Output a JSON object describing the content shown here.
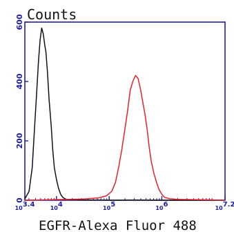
{
  "chart_data": {
    "type": "line",
    "ylabel": "Counts",
    "xlabel": "EGFR-Alexa Fluor 488",
    "x_scale": "log",
    "xlim_exponent": [
      3.4,
      7.2
    ],
    "ylim": [
      0,
      600
    ],
    "y_ticks": [
      "0",
      "200",
      "400",
      "600"
    ],
    "x_ticks": [
      {
        "base": "10",
        "exp": "3.4",
        "value_exp": 3.4
      },
      {
        "base": "10",
        "exp": "4",
        "value_exp": 4
      },
      {
        "base": "10",
        "exp": "5",
        "value_exp": 5
      },
      {
        "base": "10",
        "exp": "6",
        "value_exp": 6
      },
      {
        "base": "10",
        "exp": "7.2",
        "value_exp": 7.2
      }
    ],
    "axis_color": "#1d1da0",
    "series": [
      {
        "color": "#111111",
        "x_exp": [
          3.4,
          3.48,
          3.54,
          3.58,
          3.62,
          3.66,
          3.69,
          3.72,
          3.75,
          3.78,
          3.8,
          3.83,
          3.86,
          3.9,
          3.93,
          3.96,
          4.0,
          4.04,
          4.08,
          4.12,
          4.16,
          4.2,
          4.3,
          4.5,
          4.8,
          5.1,
          5.5,
          6.0,
          6.5,
          7.2
        ],
        "y": [
          5,
          30,
          110,
          230,
          350,
          470,
          540,
          580,
          560,
          520,
          500,
          430,
          340,
          250,
          170,
          110,
          70,
          40,
          20,
          10,
          5,
          3,
          2,
          1,
          1,
          0,
          1,
          0,
          0,
          0
        ]
      },
      {
        "color": "#e8202a",
        "x_exp": [
          3.4,
          4.0,
          4.5,
          4.8,
          4.95,
          5.05,
          5.12,
          5.18,
          5.24,
          5.3,
          5.35,
          5.4,
          5.45,
          5.5,
          5.55,
          5.6,
          5.64,
          5.68,
          5.72,
          5.76,
          5.8,
          5.85,
          5.9,
          5.95,
          6.0,
          6.05,
          6.15,
          6.3,
          6.6,
          7.0,
          7.2
        ],
        "y": [
          0,
          2,
          4,
          8,
          15,
          30,
          60,
          110,
          170,
          240,
          300,
          370,
          400,
          420,
          410,
          370,
          330,
          290,
          240,
          180,
          130,
          90,
          60,
          35,
          20,
          10,
          5,
          3,
          2,
          1,
          0
        ]
      }
    ]
  }
}
